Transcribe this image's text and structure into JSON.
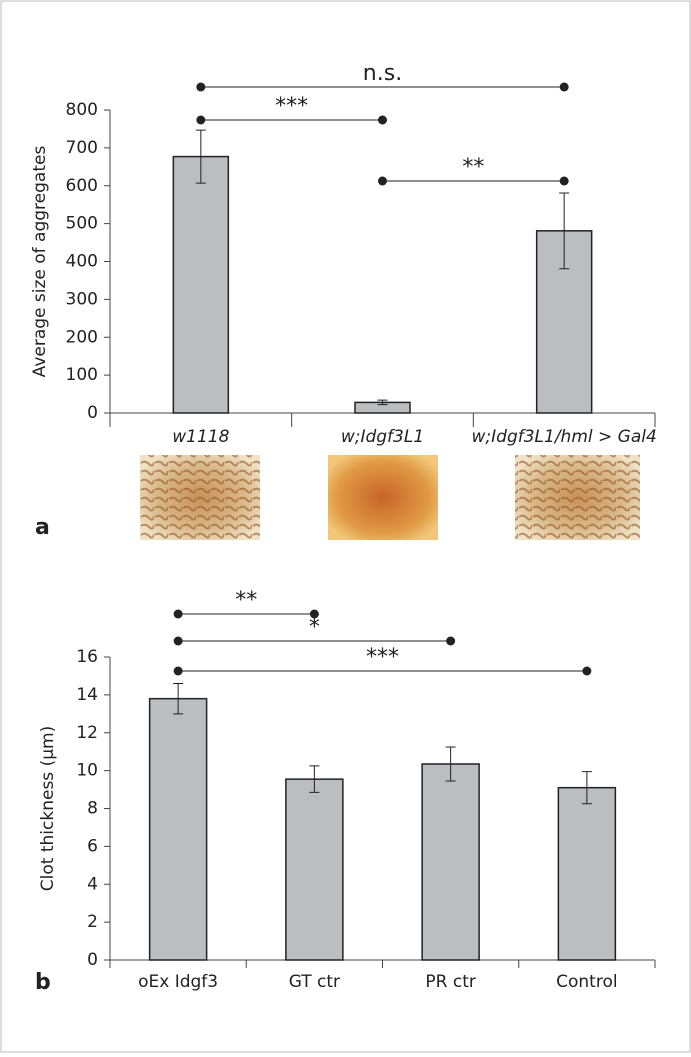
{
  "chart_data": [
    {
      "type": "bar",
      "panel": "a",
      "ylabel": "Average size of aggregates",
      "categories": [
        "w1118",
        "w;Idgf3L1",
        "w;Idgf3L1/hml > Gal4"
      ],
      "values": [
        677,
        28,
        481
      ],
      "errors": [
        70,
        6,
        100
      ],
      "color": "#bcbdc1",
      "ylim": [
        0,
        800
      ],
      "yticks": [
        0,
        100,
        200,
        300,
        400,
        500,
        600,
        700,
        800
      ],
      "annotations": [
        {
          "text": "n.s.",
          "from": 0,
          "to": 2
        },
        {
          "text": "***",
          "from": 0,
          "to": 1
        },
        {
          "text": "**",
          "from": 1,
          "to": 2
        }
      ]
    },
    {
      "type": "bar",
      "panel": "b",
      "ylabel": "Clot thickness (µm)",
      "categories": [
        "oEx Idgf3",
        "GT ctr",
        "PR ctr",
        "Control"
      ],
      "values": [
        13.8,
        9.55,
        10.35,
        9.1
      ],
      "errors": [
        0.8,
        0.7,
        0.9,
        0.85
      ],
      "color": "#bcbdc1",
      "ylim": [
        0,
        16
      ],
      "yticks": [
        0,
        2,
        4,
        6,
        8,
        10,
        12,
        14,
        16
      ],
      "annotations": [
        {
          "text": "**",
          "from": 0,
          "to": 1
        },
        {
          "text": "*",
          "from": 0,
          "to": 2
        },
        {
          "text": "***",
          "from": 0,
          "to": 3
        }
      ]
    }
  ]
}
